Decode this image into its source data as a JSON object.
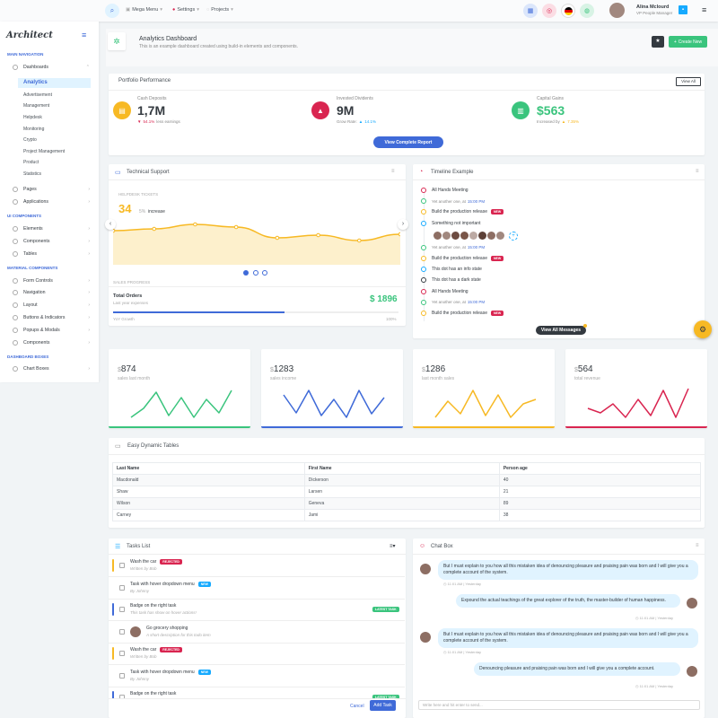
{
  "header": {
    "menu1": "Mega Menu",
    "menu2": "Settings",
    "menu3": "Projects",
    "user_name": "Alina Mclourd",
    "user_role": "VP People Manager"
  },
  "sidebar": {
    "logo": "Architect",
    "sec_main": "MAIN NAVIGATION",
    "dashboards": "Dashboards",
    "subs": [
      "Analytics",
      "Advertisement",
      "Management",
      "Helpdesk",
      "Monitoring",
      "Crypto",
      "Project Management",
      "Product",
      "Statistics"
    ],
    "pages": "Pages",
    "applications": "Applications",
    "sec_ui": "UI COMPONENTS",
    "ui": [
      "Elements",
      "Components",
      "Tables"
    ],
    "sec_mat": "MATERIAL COMPONENTS",
    "mat": [
      "Form Controls",
      "Navigation",
      "Layout",
      "Buttons & Indicators",
      "Popups & Modals",
      "Components"
    ],
    "sec_dash": "DASHBOARD BOXES",
    "boxes": [
      "Chart Boxes"
    ]
  },
  "page": {
    "title": "Analytics Dashboard",
    "subtitle": "This is an example dashboard created using build-in elements and components.",
    "create_label": "Create New"
  },
  "portfolio": {
    "title": "Portfolio Performance",
    "view_all": "View All",
    "report_btn": "View Complete Report",
    "items": [
      {
        "label": "Cash Deposits",
        "value": "1,7M",
        "delta": "54.1%",
        "note": "less earnings",
        "color": "#f7b924"
      },
      {
        "label": "Invested Dividents",
        "value": "9M",
        "note": "Grow Rate:",
        "delta": "14.1%",
        "color": "#d92550"
      },
      {
        "label": "Capital Gains",
        "value": "$563",
        "note": "Increased by",
        "delta": "7.35%",
        "color": "#3ac47d"
      }
    ]
  },
  "support": {
    "title": "Technical Support",
    "helpdesk": "HELPDESK TICKETS",
    "value": "34",
    "pct": "5%",
    "pct_note": "increase",
    "sales": "SALES PROGRESS",
    "orders_label": "Total Orders",
    "orders_sub": "Last year expenses",
    "orders_value": "$ 1896",
    "growth": "YoY Growth",
    "growth_pct": "100%",
    "progress": 0.6
  },
  "timeline": {
    "title": "Timeline Example",
    "view_btn": "View All Messages",
    "new": "NEW",
    "items": [
      {
        "text": "All Hands Meeting",
        "color": "#d92550"
      },
      {
        "text": "Yet another one, at",
        "time": "15:00 PM",
        "color": "#3ac47d",
        "sub": true
      },
      {
        "text": "Build the production release",
        "color": "#f7b924",
        "badge": true
      },
      {
        "text": "Something not important",
        "color": "#16aaff"
      },
      {
        "text": "",
        "color": "#fff",
        "avatars": true
      },
      {
        "text": "Yet another one, at",
        "time": "15:00 PM",
        "color": "#3ac47d",
        "sub": true
      },
      {
        "text": "Build the production release",
        "color": "#f7b924",
        "badge": true
      },
      {
        "text": "This dot has an info state",
        "color": "#16aaff"
      },
      {
        "text": "This dot has a dark state",
        "color": "#343a40"
      },
      {
        "text": "All Hands Meeting",
        "color": "#d92550"
      },
      {
        "text": "Yet another one, at",
        "time": "15:00 PM",
        "color": "#3ac47d",
        "sub": true
      },
      {
        "text": "Build the production release",
        "color": "#f7b924",
        "badge": true
      }
    ]
  },
  "minis": [
    {
      "value": "874",
      "label": "sales last month",
      "color": "#3ac47d"
    },
    {
      "value": "1283",
      "label": "sales income",
      "color": "#3f6ad8"
    },
    {
      "value": "1286",
      "label": "last month sales",
      "color": "#f7b924"
    },
    {
      "value": "564",
      "label": "total revenue",
      "color": "#d92550"
    }
  ],
  "table": {
    "title": "Easy Dynamic Tables",
    "headers": [
      "Last Name",
      "First Name",
      "Person age"
    ],
    "rows": [
      [
        "Macdonald",
        "Dickerson",
        "40"
      ],
      [
        "Shaw",
        "Larsen",
        "21"
      ],
      [
        "Wilson",
        "Geneva",
        "89"
      ],
      [
        "Carney",
        "Jami",
        "38"
      ]
    ]
  },
  "tasks": {
    "title": "Tasks List",
    "cancel": "Cancel",
    "add": "Add Task",
    "items": [
      {
        "t": "Wash the car",
        "s": "Written by Bob",
        "badge": "REJECTED",
        "bc": "#d92550",
        "c": "#f7b924"
      },
      {
        "t": "Task with hover dropdown menu",
        "s": "By Johnny",
        "badge": "NEW",
        "bc": "#16aaff",
        "c": "#fff"
      },
      {
        "t": "Badge on the right task",
        "s": "This task has show on hover actions!",
        "badge": "LATEST TASK",
        "bc": "#3ac47d",
        "c": "#3f6ad8",
        "right": true
      },
      {
        "t": "Go grocery shopping",
        "s": "A short description for this todo item",
        "c": "#fff",
        "avatar": true
      },
      {
        "t": "Wash the car",
        "s": "Written by Bob",
        "badge": "REJECTED",
        "bc": "#d92550",
        "c": "#f7b924"
      },
      {
        "t": "Task with hover dropdown menu",
        "s": "By Johnny",
        "badge": "NEW",
        "bc": "#16aaff",
        "c": "#fff"
      },
      {
        "t": "Badge on the right task",
        "s": "",
        "badge": "LATEST TASK",
        "bc": "#3ac47d",
        "c": "#3f6ad8",
        "right": true
      }
    ]
  },
  "chat": {
    "title": "Chat Box",
    "placeholder": "Write here and hit enter to send...",
    "time": "11:01 AM",
    "yesterday": "Yesterday",
    "msgs": [
      {
        "text": "But I must explain to you how all this mistaken idea of denouncing pleasure and praising pain was born and I will give you a complete account of the system.",
        "side": "left"
      },
      {
        "text": "Expound the actual teachings of the great explorer of the truth, the master-builder of human happiness.",
        "side": "right"
      },
      {
        "text": "But I must explain to you how all this mistaken idea of denouncing pleasure and praising pain was born and I will give you a complete account of the system.",
        "side": "left"
      },
      {
        "text": "Denouncing pleasure and praising pain was born and I will give you a complete account.",
        "side": "right"
      }
    ]
  },
  "chart_data": {
    "type": "area",
    "x": [
      0,
      1,
      2,
      3,
      4,
      5,
      6,
      7
    ],
    "values": [
      38,
      40,
      45,
      42,
      30,
      33,
      27,
      34
    ],
    "ylim": [
      0,
      60
    ]
  }
}
